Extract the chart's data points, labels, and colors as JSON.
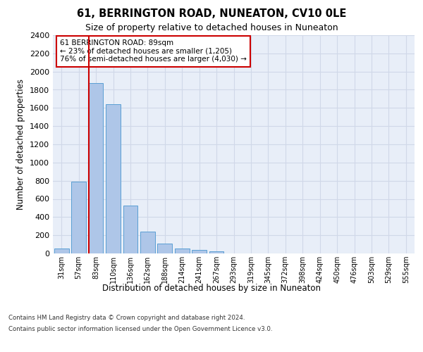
{
  "title": "61, BERRINGTON ROAD, NUNEATON, CV10 0LE",
  "subtitle": "Size of property relative to detached houses in Nuneaton",
  "xlabel": "Distribution of detached houses by size in Nuneaton",
  "ylabel": "Number of detached properties",
  "categories": [
    "31sqm",
    "57sqm",
    "83sqm",
    "110sqm",
    "136sqm",
    "162sqm",
    "188sqm",
    "214sqm",
    "241sqm",
    "267sqm",
    "293sqm",
    "319sqm",
    "345sqm",
    "372sqm",
    "398sqm",
    "424sqm",
    "450sqm",
    "476sqm",
    "503sqm",
    "529sqm",
    "555sqm"
  ],
  "values": [
    55,
    790,
    1870,
    1640,
    530,
    238,
    108,
    57,
    35,
    20,
    0,
    0,
    0,
    0,
    0,
    0,
    0,
    0,
    0,
    0,
    0
  ],
  "bar_color": "#aec6e8",
  "bar_edge_color": "#5a9fd4",
  "vline_x": 2,
  "vline_color": "#cc0000",
  "annotation_text": "61 BERRINGTON ROAD: 89sqm\n← 23% of detached houses are smaller (1,205)\n76% of semi-detached houses are larger (4,030) →",
  "annotation_box_color": "#ffffff",
  "annotation_box_edge_color": "#cc0000",
  "ylim": [
    0,
    2400
  ],
  "yticks": [
    0,
    200,
    400,
    600,
    800,
    1000,
    1200,
    1400,
    1600,
    1800,
    2000,
    2200,
    2400
  ],
  "grid_color": "#d0d8e8",
  "background_color": "#e8eef8",
  "footer_line1": "Contains HM Land Registry data © Crown copyright and database right 2024.",
  "footer_line2": "Contains public sector information licensed under the Open Government Licence v3.0."
}
